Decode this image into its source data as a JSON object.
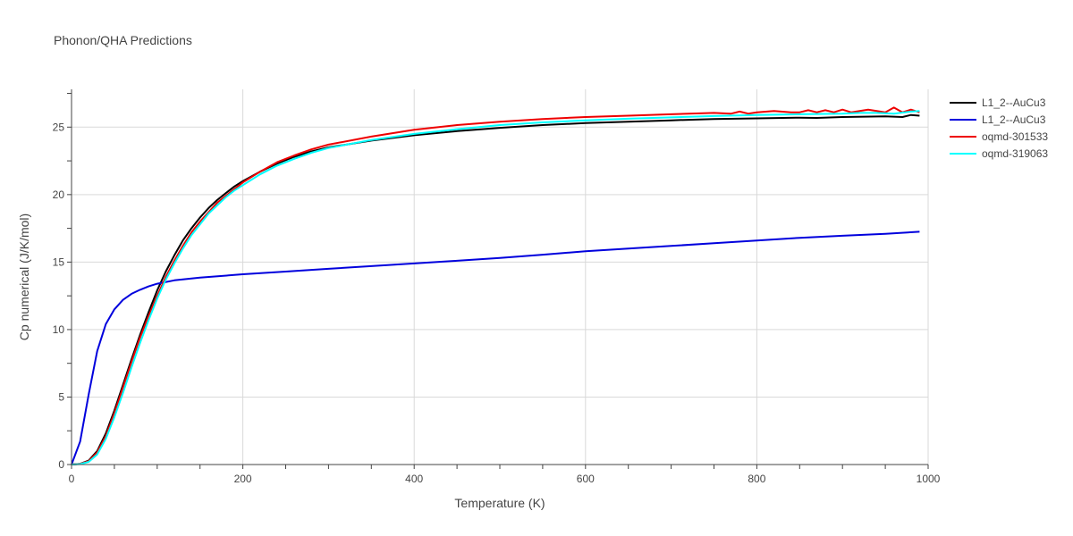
{
  "chart_data": {
    "type": "line",
    "title": "Phonon/QHA Predictions",
    "xlabel": "Temperature (K)",
    "ylabel": "Cp numerical (J/K/mol)",
    "xlim": [
      0,
      1000
    ],
    "ylim": [
      0,
      27.8
    ],
    "xticks": [
      0,
      200,
      400,
      600,
      800,
      1000
    ],
    "yticks": [
      0,
      5,
      10,
      15,
      20,
      25
    ],
    "grid": true,
    "legend_position": "right",
    "series": [
      {
        "name": "L1_2--AuCu3",
        "color": "#000000",
        "points": [
          [
            0,
            0
          ],
          [
            10,
            0.05
          ],
          [
            20,
            0.3
          ],
          [
            30,
            1.0
          ],
          [
            40,
            2.3
          ],
          [
            50,
            4.0
          ],
          [
            60,
            5.9
          ],
          [
            70,
            7.8
          ],
          [
            80,
            9.6
          ],
          [
            90,
            11.3
          ],
          [
            100,
            12.9
          ],
          [
            110,
            14.3
          ],
          [
            120,
            15.5
          ],
          [
            130,
            16.6
          ],
          [
            140,
            17.5
          ],
          [
            150,
            18.3
          ],
          [
            160,
            19.0
          ],
          [
            170,
            19.6
          ],
          [
            180,
            20.1
          ],
          [
            190,
            20.6
          ],
          [
            200,
            21.0
          ],
          [
            220,
            21.7
          ],
          [
            240,
            22.3
          ],
          [
            260,
            22.8
          ],
          [
            280,
            23.2
          ],
          [
            300,
            23.5
          ],
          [
            350,
            24.0
          ],
          [
            400,
            24.4
          ],
          [
            450,
            24.7
          ],
          [
            500,
            24.95
          ],
          [
            550,
            25.15
          ],
          [
            600,
            25.3
          ],
          [
            650,
            25.4
          ],
          [
            700,
            25.5
          ],
          [
            750,
            25.6
          ],
          [
            800,
            25.65
          ],
          [
            850,
            25.7
          ],
          [
            870,
            25.68
          ],
          [
            900,
            25.75
          ],
          [
            950,
            25.8
          ],
          [
            970,
            25.75
          ],
          [
            980,
            25.9
          ],
          [
            990,
            25.85
          ]
        ]
      },
      {
        "name": "L1_2--AuCu3",
        "color": "#0000dd",
        "points": [
          [
            0,
            0
          ],
          [
            10,
            1.7
          ],
          [
            20,
            5.2
          ],
          [
            30,
            8.4
          ],
          [
            40,
            10.4
          ],
          [
            50,
            11.5
          ],
          [
            60,
            12.2
          ],
          [
            70,
            12.65
          ],
          [
            80,
            12.95
          ],
          [
            90,
            13.2
          ],
          [
            100,
            13.4
          ],
          [
            120,
            13.65
          ],
          [
            150,
            13.85
          ],
          [
            200,
            14.1
          ],
          [
            250,
            14.3
          ],
          [
            300,
            14.5
          ],
          [
            350,
            14.7
          ],
          [
            400,
            14.9
          ],
          [
            450,
            15.1
          ],
          [
            500,
            15.3
          ],
          [
            550,
            15.55
          ],
          [
            600,
            15.8
          ],
          [
            650,
            16.0
          ],
          [
            700,
            16.2
          ],
          [
            750,
            16.4
          ],
          [
            800,
            16.6
          ],
          [
            850,
            16.8
          ],
          [
            900,
            16.95
          ],
          [
            950,
            17.1
          ],
          [
            990,
            17.25
          ]
        ]
      },
      {
        "name": "oqmd-301533",
        "color": "#ee0000",
        "points": [
          [
            0,
            0
          ],
          [
            10,
            0.05
          ],
          [
            20,
            0.25
          ],
          [
            30,
            0.9
          ],
          [
            40,
            2.1
          ],
          [
            50,
            3.8
          ],
          [
            60,
            5.7
          ],
          [
            70,
            7.6
          ],
          [
            80,
            9.4
          ],
          [
            90,
            11.0
          ],
          [
            100,
            12.5
          ],
          [
            110,
            13.9
          ],
          [
            120,
            15.1
          ],
          [
            130,
            16.2
          ],
          [
            140,
            17.2
          ],
          [
            150,
            18.0
          ],
          [
            160,
            18.7
          ],
          [
            170,
            19.4
          ],
          [
            180,
            19.9
          ],
          [
            190,
            20.4
          ],
          [
            200,
            20.9
          ],
          [
            220,
            21.7
          ],
          [
            240,
            22.4
          ],
          [
            260,
            22.9
          ],
          [
            280,
            23.35
          ],
          [
            300,
            23.7
          ],
          [
            350,
            24.3
          ],
          [
            400,
            24.8
          ],
          [
            450,
            25.15
          ],
          [
            500,
            25.4
          ],
          [
            550,
            25.6
          ],
          [
            600,
            25.75
          ],
          [
            650,
            25.85
          ],
          [
            700,
            25.95
          ],
          [
            750,
            26.05
          ],
          [
            770,
            26.0
          ],
          [
            780,
            26.15
          ],
          [
            790,
            26.0
          ],
          [
            800,
            26.1
          ],
          [
            820,
            26.2
          ],
          [
            840,
            26.1
          ],
          [
            850,
            26.1
          ],
          [
            860,
            26.25
          ],
          [
            870,
            26.1
          ],
          [
            880,
            26.25
          ],
          [
            890,
            26.1
          ],
          [
            900,
            26.3
          ],
          [
            910,
            26.1
          ],
          [
            920,
            26.2
          ],
          [
            930,
            26.3
          ],
          [
            940,
            26.2
          ],
          [
            950,
            26.1
          ],
          [
            960,
            26.45
          ],
          [
            970,
            26.1
          ],
          [
            980,
            26.3
          ],
          [
            990,
            26.1
          ]
        ]
      },
      {
        "name": "oqmd-319063",
        "color": "#00ffff",
        "points": [
          [
            0,
            0
          ],
          [
            10,
            0.03
          ],
          [
            20,
            0.2
          ],
          [
            30,
            0.75
          ],
          [
            40,
            1.9
          ],
          [
            50,
            3.5
          ],
          [
            60,
            5.3
          ],
          [
            70,
            7.2
          ],
          [
            80,
            9.0
          ],
          [
            90,
            10.7
          ],
          [
            100,
            12.3
          ],
          [
            110,
            13.7
          ],
          [
            120,
            14.9
          ],
          [
            130,
            16.0
          ],
          [
            140,
            17.0
          ],
          [
            150,
            17.8
          ],
          [
            160,
            18.6
          ],
          [
            170,
            19.2
          ],
          [
            180,
            19.8
          ],
          [
            190,
            20.3
          ],
          [
            200,
            20.7
          ],
          [
            220,
            21.5
          ],
          [
            240,
            22.15
          ],
          [
            260,
            22.65
          ],
          [
            280,
            23.1
          ],
          [
            300,
            23.45
          ],
          [
            350,
            24.05
          ],
          [
            400,
            24.5
          ],
          [
            450,
            24.85
          ],
          [
            500,
            25.15
          ],
          [
            550,
            25.35
          ],
          [
            600,
            25.5
          ],
          [
            650,
            25.62
          ],
          [
            700,
            25.72
          ],
          [
            750,
            25.82
          ],
          [
            800,
            25.9
          ],
          [
            850,
            25.95
          ],
          [
            900,
            26.0
          ],
          [
            920,
            26.05
          ],
          [
            940,
            26.05
          ],
          [
            960,
            26.0
          ],
          [
            980,
            26.15
          ],
          [
            990,
            26.2
          ]
        ]
      }
    ]
  }
}
